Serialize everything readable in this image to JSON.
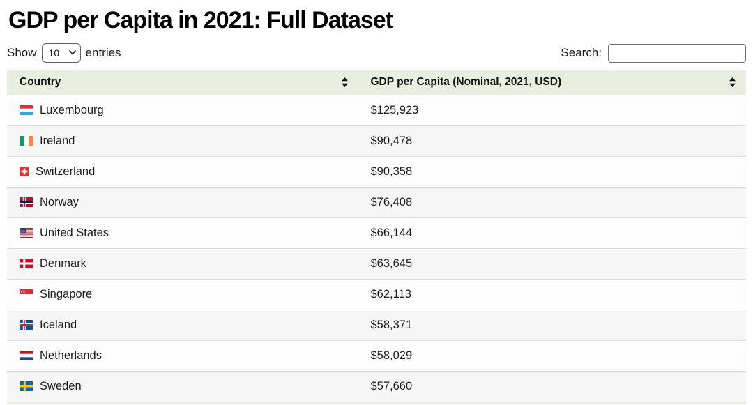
{
  "page": {
    "title": "GDP per Capita in 2021: Full Dataset"
  },
  "controls": {
    "show_label": "Show",
    "entries_label": "entries",
    "page_size_selected": "10",
    "search_label": "Search:",
    "search_value": ""
  },
  "table": {
    "columns": [
      {
        "label": "Country",
        "sort_icon": "sort-both-icon"
      },
      {
        "label": "GDP per Capita (Nominal, 2021, USD)",
        "sort_icon": "sort-both-icon"
      }
    ],
    "rows": [
      {
        "flag": "luxembourg",
        "country": "Luxembourg",
        "gdp": "$125,923"
      },
      {
        "flag": "ireland",
        "country": "Ireland",
        "gdp": "$90,478"
      },
      {
        "flag": "switzerland",
        "country": "Switzerland",
        "gdp": "$90,358"
      },
      {
        "flag": "norway",
        "country": "Norway",
        "gdp": "$76,408"
      },
      {
        "flag": "united-states",
        "country": "United States",
        "gdp": "$66,144"
      },
      {
        "flag": "denmark",
        "country": "Denmark",
        "gdp": "$63,645"
      },
      {
        "flag": "singapore",
        "country": "Singapore",
        "gdp": "$62,113"
      },
      {
        "flag": "iceland",
        "country": "Iceland",
        "gdp": "$58,371"
      },
      {
        "flag": "netherlands",
        "country": "Netherlands",
        "gdp": "$58,029"
      },
      {
        "flag": "sweden",
        "country": "Sweden",
        "gdp": "$57,660"
      }
    ]
  },
  "colors": {
    "header_bg": "#e8eee0",
    "row_odd_bg": "#fdfdfd",
    "row_even_bg": "#f6f6f6",
    "border": "#dcdcdc"
  }
}
